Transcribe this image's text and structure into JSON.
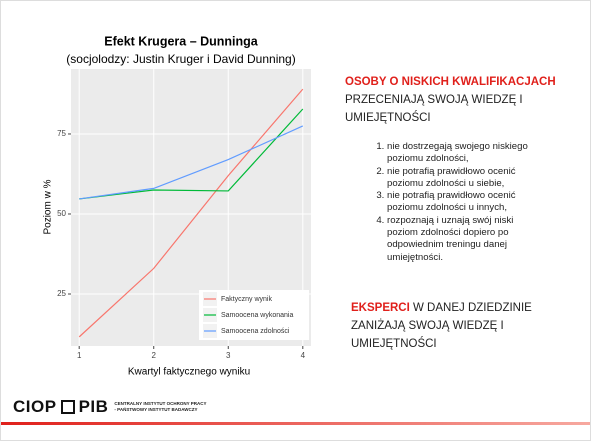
{
  "chart_data": {
    "type": "line",
    "title": "Efekt Krugera – Dunninga",
    "subtitle": "(socjolodzy: Justin Kruger i David Dunning)",
    "x_label": "Kwartyl faktycznego wyniku",
    "y_label": "Poziom w %",
    "x": [
      1,
      2,
      3,
      4
    ],
    "xlim": [
      0.89,
      4.11
    ],
    "xticks": [
      1,
      2,
      3,
      4
    ],
    "ylim": [
      8.75,
      95.3
    ],
    "yticks": [
      25,
      50,
      75
    ],
    "grid": true,
    "legend": "bottom-right",
    "series": [
      {
        "name": "Faktyczny wynik",
        "color": "#f8766d",
        "values": [
          11.6,
          33,
          62,
          89
        ]
      },
      {
        "name": "Samoocena wykonania",
        "color": "#00ba38",
        "values": [
          54.7,
          57.5,
          57.2,
          82.8
        ]
      },
      {
        "name": "Samoocena zdolności",
        "color": "#619cff",
        "values": [
          54.7,
          58,
          67,
          77.5
        ]
      }
    ]
  },
  "text": {
    "heading_highlight": "OSOBY O NISKICH KWALIFIKACJACH",
    "heading_rest": "PRZECENIAJĄ SWOJĄ WIEDZĘ I UMIEJĘTNOŚCI",
    "items": [
      "nie dostrzegają swojego niskiego poziomu zdolności,",
      "nie potrafią prawidłowo ocenić poziomu zdolności u siebie,",
      "nie potrafią prawidłowo ocenić poziomu zdolności u innych,",
      "rozpoznają i uznają swój niski poziom zdolności dopiero po odpowiednim treningu danej umiejętności."
    ],
    "experts_highlight": "EKSPERCI",
    "experts_rest": "W DANEJ DZIEDZINIE ZANIŻAJĄ SWOJĄ WIEDZĘ I UMIEJĘTNOŚCI"
  },
  "footer": {
    "logo_left": "CIOP",
    "logo_right": "PIB",
    "line1": "CENTRALNY INSTYTUT OCHRONY PRACY",
    "line2": "- PAŃSTWOWY INSTYTUT BADAWCZY"
  }
}
